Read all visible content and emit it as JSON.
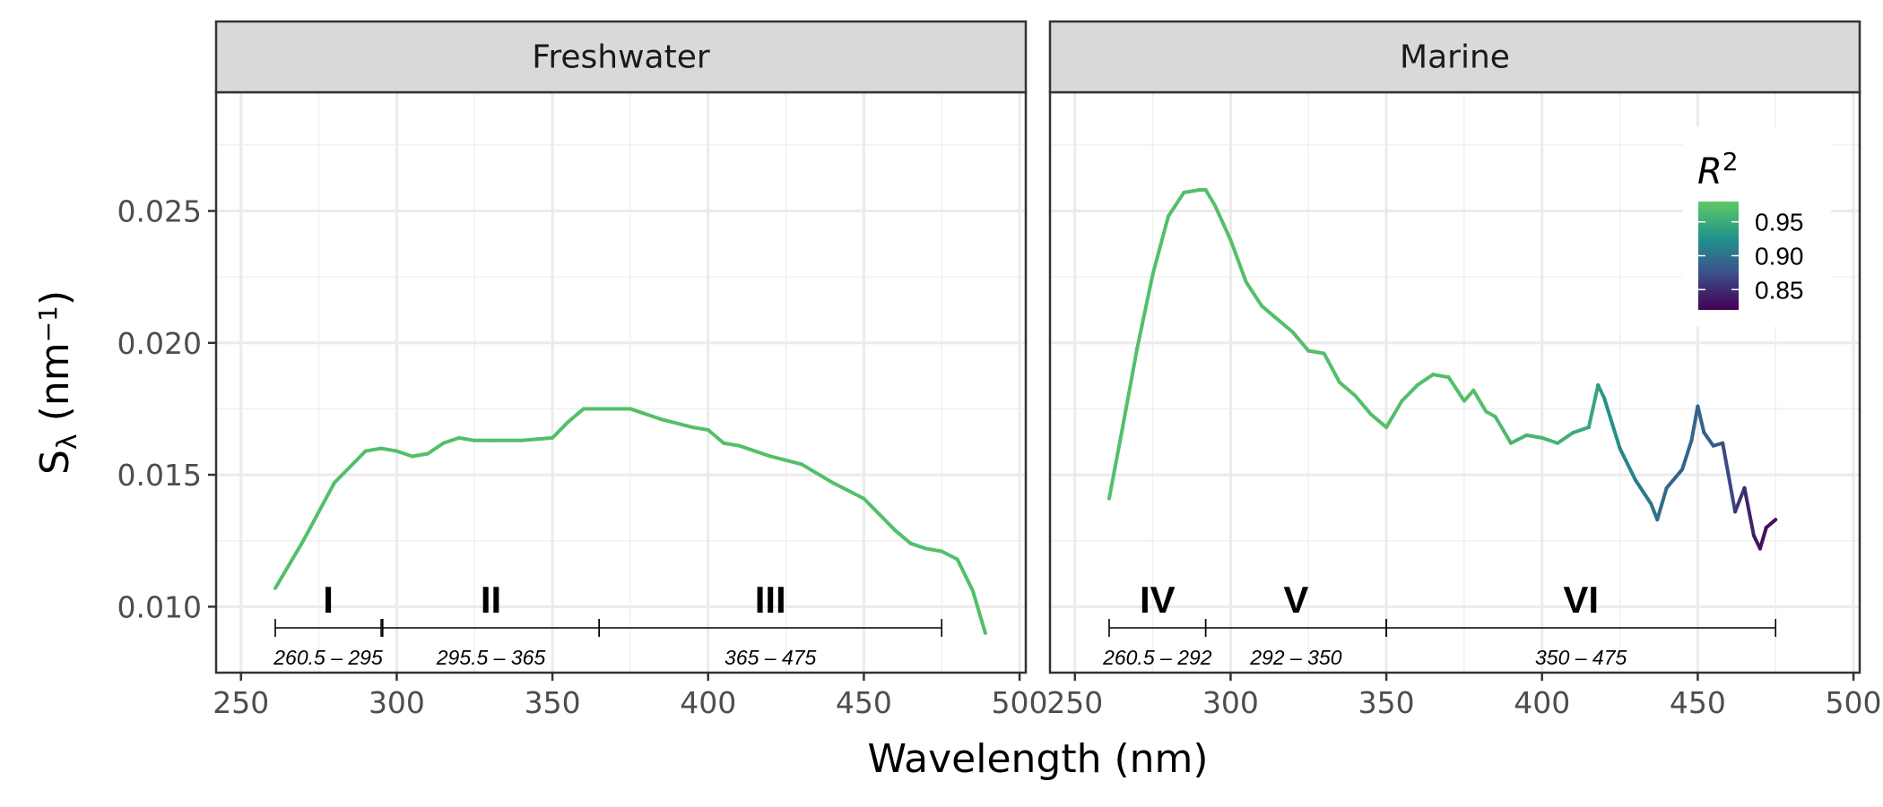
{
  "chart_data": {
    "type": "line",
    "xlabel": "Wavelength (nm)",
    "ylabel_main": "S",
    "ylabel_sub": "λ",
    "ylabel_unit_open": " (nm",
    "ylabel_unit_exp": "−1",
    "ylabel_unit_close": ")",
    "xlim": [
      242,
      502
    ],
    "ylim": [
      0.0075,
      0.0295
    ],
    "x_ticks": [
      250,
      300,
      350,
      400,
      450,
      500
    ],
    "x_tick_labels": [
      "250",
      "300",
      "350",
      "400",
      "450",
      "500"
    ],
    "y_ticks": [
      0.01,
      0.015,
      0.02,
      0.025
    ],
    "y_tick_labels": [
      "0.010",
      "0.015",
      "0.020",
      "0.025"
    ],
    "grid": true,
    "colorbar": {
      "title": "R",
      "title_sup": "2",
      "range": [
        0.82,
        0.98
      ],
      "tick_values": [
        0.95,
        0.9,
        0.85
      ],
      "tick_labels": [
        "0.95",
        "0.90",
        "0.85"
      ],
      "colors": [
        "#440154",
        "#3b528b",
        "#21918c",
        "#5ec962"
      ],
      "position": "top-right of Marine panel"
    },
    "panels": [
      {
        "name": "Freshwater",
        "x": [
          261,
          270,
          280,
          290,
          295,
          300,
          305,
          310,
          315,
          320,
          325,
          330,
          340,
          350,
          355,
          360,
          365,
          375,
          385,
          395,
          400,
          405,
          410,
          420,
          430,
          440,
          450,
          460,
          465,
          470,
          475,
          480,
          485,
          489
        ],
        "y": [
          0.0107,
          0.0125,
          0.0147,
          0.0159,
          0.016,
          0.0159,
          0.0157,
          0.0158,
          0.0162,
          0.0164,
          0.0163,
          0.0163,
          0.0163,
          0.0164,
          0.017,
          0.0175,
          0.0175,
          0.0175,
          0.0171,
          0.0168,
          0.0167,
          0.0162,
          0.0161,
          0.0157,
          0.0154,
          0.0147,
          0.0141,
          0.0129,
          0.0124,
          0.0122,
          0.0121,
          0.0118,
          0.0106,
          0.009
        ],
        "r2": [
          0.97,
          0.97,
          0.97,
          0.97,
          0.97,
          0.97,
          0.97,
          0.97,
          0.97,
          0.97,
          0.97,
          0.97,
          0.97,
          0.97,
          0.97,
          0.97,
          0.97,
          0.97,
          0.97,
          0.97,
          0.97,
          0.97,
          0.97,
          0.97,
          0.97,
          0.97,
          0.97,
          0.97,
          0.97,
          0.97,
          0.97,
          0.97,
          0.97,
          0.97
        ],
        "segments": [
          {
            "label": "I",
            "from": 261,
            "to": 295,
            "range_label": "260.5 – 295"
          },
          {
            "label": "II",
            "from": 295.5,
            "to": 365,
            "range_label": "295.5 – 365"
          },
          {
            "label": "III",
            "from": 365,
            "to": 475,
            "range_label": "365 – 475"
          }
        ]
      },
      {
        "name": "Marine",
        "x": [
          261,
          265,
          270,
          275,
          280,
          285,
          290,
          292,
          295,
          300,
          305,
          310,
          315,
          320,
          325,
          330,
          335,
          340,
          345,
          350,
          355,
          360,
          365,
          370,
          375,
          378,
          382,
          385,
          390,
          395,
          400,
          405,
          410,
          415,
          418,
          420,
          425,
          430,
          435,
          437,
          440,
          445,
          448,
          450,
          452,
          455,
          458,
          462,
          465,
          468,
          470,
          472,
          475
        ],
        "y": [
          0.0141,
          0.0166,
          0.0198,
          0.0226,
          0.0248,
          0.0257,
          0.0258,
          0.0258,
          0.0252,
          0.0239,
          0.0223,
          0.0214,
          0.0209,
          0.0204,
          0.0197,
          0.0196,
          0.0185,
          0.018,
          0.0173,
          0.0168,
          0.0178,
          0.0184,
          0.0188,
          0.0187,
          0.0178,
          0.0182,
          0.0174,
          0.0172,
          0.0162,
          0.0165,
          0.0164,
          0.0162,
          0.0166,
          0.0168,
          0.0184,
          0.0179,
          0.016,
          0.0148,
          0.0139,
          0.0133,
          0.0145,
          0.0152,
          0.0163,
          0.0176,
          0.0166,
          0.0161,
          0.0162,
          0.0136,
          0.0145,
          0.0127,
          0.0122,
          0.013,
          0.0133
        ],
        "r2": [
          0.97,
          0.97,
          0.97,
          0.97,
          0.97,
          0.97,
          0.97,
          0.97,
          0.97,
          0.97,
          0.97,
          0.97,
          0.97,
          0.97,
          0.97,
          0.97,
          0.97,
          0.97,
          0.97,
          0.97,
          0.97,
          0.97,
          0.97,
          0.97,
          0.97,
          0.97,
          0.97,
          0.97,
          0.96,
          0.96,
          0.96,
          0.96,
          0.95,
          0.95,
          0.94,
          0.93,
          0.92,
          0.91,
          0.9,
          0.9,
          0.89,
          0.89,
          0.89,
          0.89,
          0.89,
          0.88,
          0.88,
          0.86,
          0.85,
          0.84,
          0.83,
          0.83,
          0.83
        ],
        "segments": [
          {
            "label": "IV",
            "from": 261,
            "to": 292,
            "range_label": "260.5 – 292"
          },
          {
            "label": "V",
            "from": 292,
            "to": 350,
            "range_label": "292 – 350"
          },
          {
            "label": "VI",
            "from": 350,
            "to": 475,
            "range_label": "350 – 475"
          }
        ]
      }
    ]
  }
}
